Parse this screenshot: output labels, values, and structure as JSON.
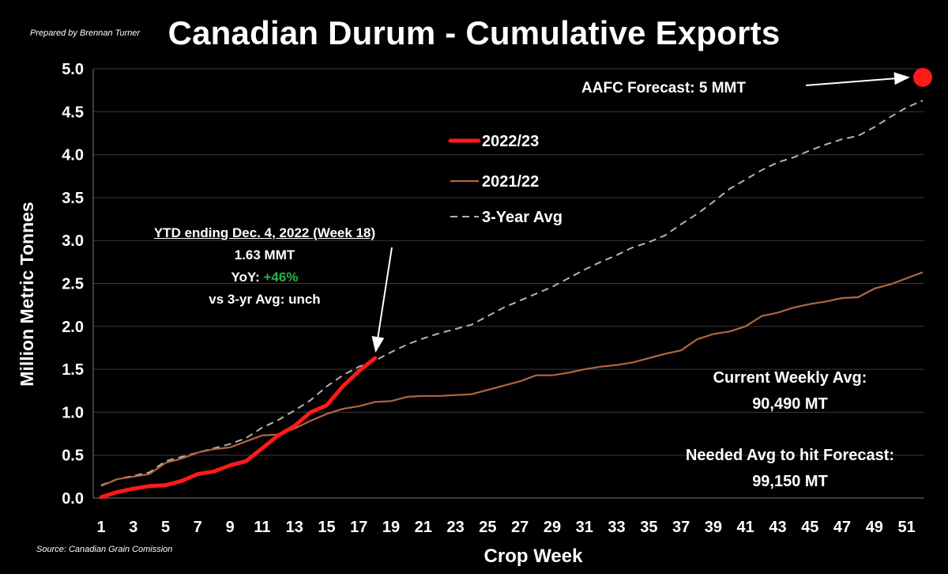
{
  "header": {
    "prepared_by": "Prepared by Brennan Turner",
    "title": "Canadian Durum - Cumulative Exports"
  },
  "footer": {
    "source": "Source: Canadian Grain Comission"
  },
  "annotations": {
    "ytd_header": "YTD ending Dec. 4, 2022 (Week 18)",
    "ytd_value": "1.63 MMT",
    "yoy_label": "YoY: ",
    "yoy_value": "+46%",
    "vs_avg": "vs 3-yr Avg: unch",
    "aafc_forecast": "AAFC Forecast: 5 MMT",
    "weekly_label": "Current Weekly Avg:",
    "weekly_value": "90,490 MT",
    "needed_label": "Needed Avg to hit Forecast:",
    "needed_value": "99,150 MT"
  },
  "chart_data": {
    "type": "line",
    "xlabel": "Crop Week",
    "ylabel": "Million Metric Tonnes",
    "xlim": [
      1,
      52
    ],
    "ylim": [
      0,
      5
    ],
    "x_ticks": [
      1,
      3,
      5,
      7,
      9,
      11,
      13,
      15,
      17,
      19,
      21,
      23,
      25,
      27,
      29,
      31,
      33,
      35,
      37,
      39,
      41,
      43,
      45,
      47,
      49,
      51
    ],
    "y_ticks": [
      "0.0",
      "0.5",
      "1.0",
      "1.5",
      "2.0",
      "2.5",
      "3.0",
      "3.5",
      "4.0",
      "4.5",
      "5.0"
    ],
    "grid": "horizontal",
    "legend_position": "top-center",
    "forecast_point": {
      "x": 52,
      "y": 4.9,
      "color": "#ff1a1a"
    },
    "series": [
      {
        "name": "2022/23",
        "color": "#ff1a1a",
        "style": "solid-thick",
        "x": [
          1,
          2,
          3,
          4,
          5,
          6,
          7,
          8,
          9,
          10,
          11,
          12,
          13,
          14,
          15,
          16,
          17,
          18
        ],
        "values": [
          0.01,
          0.07,
          0.11,
          0.14,
          0.15,
          0.2,
          0.28,
          0.31,
          0.38,
          0.43,
          0.58,
          0.73,
          0.84,
          1.0,
          1.08,
          1.3,
          1.48,
          1.63
        ]
      },
      {
        "name": "2021/22",
        "color": "#b0673f",
        "style": "solid",
        "x": [
          1,
          2,
          3,
          4,
          5,
          6,
          7,
          8,
          9,
          10,
          11,
          12,
          13,
          14,
          15,
          16,
          17,
          18,
          19,
          20,
          21,
          22,
          23,
          24,
          25,
          26,
          27,
          28,
          29,
          30,
          31,
          32,
          33,
          34,
          35,
          36,
          37,
          38,
          39,
          40,
          41,
          42,
          43,
          44,
          45,
          46,
          47,
          48,
          49,
          50,
          51,
          52
        ],
        "values": [
          0.14,
          0.22,
          0.25,
          0.28,
          0.41,
          0.46,
          0.53,
          0.57,
          0.59,
          0.66,
          0.73,
          0.74,
          0.81,
          0.9,
          0.98,
          1.04,
          1.07,
          1.12,
          1.13,
          1.18,
          1.19,
          1.19,
          1.2,
          1.21,
          1.26,
          1.31,
          1.36,
          1.43,
          1.43,
          1.46,
          1.5,
          1.53,
          1.55,
          1.58,
          1.63,
          1.68,
          1.72,
          1.85,
          1.91,
          1.94,
          2.0,
          2.12,
          2.16,
          2.22,
          2.26,
          2.29,
          2.33,
          2.34,
          2.44,
          2.49,
          2.56,
          2.63
        ]
      },
      {
        "name": "3-Year Avg",
        "color": "#b3b3b3",
        "style": "dashed",
        "x": [
          1,
          2,
          3,
          4,
          5,
          6,
          7,
          8,
          9,
          10,
          11,
          12,
          13,
          14,
          15,
          16,
          17,
          18,
          19,
          20,
          21,
          22,
          23,
          24,
          25,
          26,
          27,
          28,
          29,
          30,
          31,
          32,
          33,
          34,
          35,
          36,
          37,
          38,
          39,
          40,
          41,
          42,
          43,
          44,
          45,
          46,
          47,
          48,
          49,
          50,
          51,
          52
        ],
        "values": [
          0.15,
          0.22,
          0.26,
          0.3,
          0.43,
          0.48,
          0.53,
          0.58,
          0.63,
          0.7,
          0.82,
          0.91,
          1.02,
          1.14,
          1.3,
          1.43,
          1.53,
          1.6,
          1.7,
          1.79,
          1.86,
          1.92,
          1.97,
          2.02,
          2.12,
          2.22,
          2.3,
          2.38,
          2.46,
          2.56,
          2.66,
          2.75,
          2.83,
          2.92,
          2.98,
          3.06,
          3.19,
          3.31,
          3.45,
          3.6,
          3.71,
          3.82,
          3.91,
          3.97,
          4.05,
          4.12,
          4.18,
          4.22,
          4.32,
          4.44,
          4.55,
          4.63
        ]
      }
    ]
  }
}
